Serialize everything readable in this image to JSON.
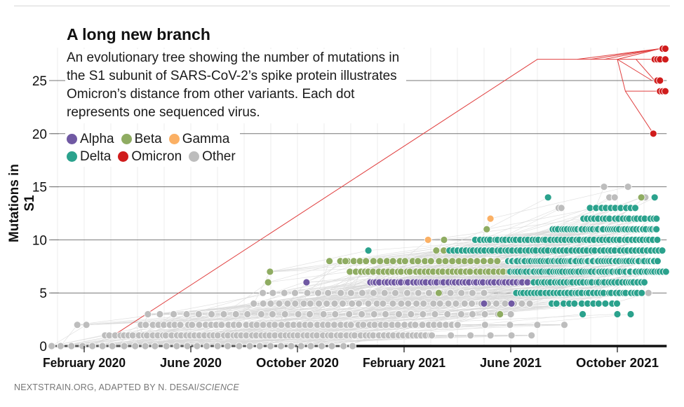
{
  "header": {
    "title": "A long new branch",
    "description": "An evolutionary tree showing the number of mutations in the S1 subunit of SARS-CoV-2’s spike protein illustrates Omicron’s distance from other variants. Each dot represents one sequenced virus."
  },
  "footer": {
    "credit": "NEXTSTRAIN.ORG, ADAPTED BY N. DESAI/",
    "publication": "SCIENCE"
  },
  "chart_data": {
    "type": "scatter",
    "title": "A long new branch",
    "xlabel": "",
    "ylabel": "Mutations in S1",
    "x_unit": "months since January 2020",
    "xlim": [
      -0.26,
      22.85
    ],
    "ylim": [
      0,
      28
    ],
    "yticks": [
      0,
      5,
      10,
      15,
      20,
      25
    ],
    "ygrid": [
      5,
      10,
      15,
      20,
      25
    ],
    "xticks": [
      {
        "value": 1,
        "label": "February 2020"
      },
      {
        "value": 5,
        "label": "June 2020"
      },
      {
        "value": 9,
        "label": "October 2020"
      },
      {
        "value": 13,
        "label": "February 2021"
      },
      {
        "value": 17,
        "label": "June 2021"
      },
      {
        "value": 21,
        "label": "October 2021"
      }
    ],
    "legend": {
      "placement": "top-left"
    },
    "series": [
      {
        "name": "Other",
        "color": "#bdbdbd",
        "runs": [
          [
            0,
            -0.26,
            11.1,
            30
          ],
          [
            1,
            1.8,
            14,
            70
          ],
          [
            1,
            14,
            17.8,
            6
          ],
          [
            2,
            0.75,
            1.1,
            2
          ],
          [
            2,
            3.1,
            15,
            55
          ],
          [
            2,
            15,
            19,
            5
          ],
          [
            3,
            3.4,
            17,
            30
          ],
          [
            4,
            7.4,
            17.7,
            35
          ],
          [
            5,
            8.1,
            16,
            20
          ],
          [
            5,
            20,
            22.2,
            4
          ]
        ],
        "points": [
          [
            20.5,
            15
          ],
          [
            21.4,
            15
          ],
          [
            20.7,
            14
          ],
          [
            20.9,
            14
          ],
          [
            21.9,
            14
          ],
          [
            22.05,
            14
          ],
          [
            18.8,
            13
          ],
          [
            18.9,
            13
          ],
          [
            21,
            13
          ],
          [
            21.4,
            12
          ],
          [
            16.55,
            10
          ],
          [
            7.7,
            5
          ]
        ]
      },
      {
        "name": "Alpha",
        "color": "#7059a3",
        "runs": [
          [
            6,
            11.7,
            17.6,
            45
          ]
        ],
        "points": [
          [
            9.34,
            6
          ],
          [
            16,
            4
          ],
          [
            17.03,
            4
          ]
        ]
      },
      {
        "name": "Beta",
        "color": "#8fac62",
        "runs": [
          [
            7,
            11,
            16.9,
            35
          ],
          [
            8,
            10.6,
            16.5,
            25
          ],
          [
            9,
            14.2,
            16.3,
            8
          ]
        ],
        "points": [
          [
            7.97,
            7
          ],
          [
            7.9,
            6
          ],
          [
            10.2,
            8
          ],
          [
            10.8,
            8
          ],
          [
            14.5,
            10
          ],
          [
            15.9,
            10
          ],
          [
            17.8,
            10
          ],
          [
            16.1,
            11
          ],
          [
            21.9,
            14
          ],
          [
            14.3,
            5
          ],
          [
            16.6,
            3
          ]
        ]
      },
      {
        "name": "Gamma",
        "color": "#fbb064",
        "runs": [],
        "points": [
          [
            16.24,
            12
          ],
          [
            13.9,
            10
          ],
          [
            17.05,
            10
          ],
          [
            18.1,
            10
          ],
          [
            19.1,
            11
          ]
        ]
      },
      {
        "name": "Delta",
        "color": "#2ba28d",
        "runs": [
          [
            7,
            17,
            22.8,
            60
          ],
          [
            8,
            16.9,
            22.5,
            60
          ],
          [
            9,
            14.7,
            22.7,
            55
          ],
          [
            10,
            15.7,
            22.5,
            50
          ],
          [
            11,
            18.6,
            22.5,
            40
          ],
          [
            12,
            19.7,
            22.5,
            20
          ],
          [
            13,
            20,
            21.7,
            10
          ],
          [
            6,
            17.9,
            22,
            35
          ],
          [
            5,
            17.2,
            21.9,
            35
          ],
          [
            4,
            18.5,
            21,
            12
          ]
        ],
        "points": [
          [
            11.66,
            9
          ],
          [
            18.4,
            14
          ],
          [
            22.4,
            14
          ],
          [
            19.7,
            3
          ],
          [
            21,
            3
          ],
          [
            21.5,
            3
          ]
        ]
      },
      {
        "name": "Omicron",
        "color": "#d01c1c",
        "runs": [],
        "points": [
          [
            22.7,
            28
          ],
          [
            22.8,
            28
          ],
          [
            22.4,
            27
          ],
          [
            22.5,
            27
          ],
          [
            22.6,
            27
          ],
          [
            22.8,
            27
          ],
          [
            22.5,
            25
          ],
          [
            22.6,
            25
          ],
          [
            22.6,
            24
          ],
          [
            22.7,
            24
          ],
          [
            22.8,
            24
          ],
          [
            22.35,
            20
          ]
        ]
      }
    ],
    "omicron_branches": [
      [
        [
          2.1,
          1
        ],
        [
          18,
          27
        ],
        [
          21,
          27
        ]
      ],
      [
        [
          19.5,
          27
        ],
        [
          22.6,
          28
        ]
      ],
      [
        [
          20,
          27
        ],
        [
          22.6,
          28
        ]
      ],
      [
        [
          20.5,
          27
        ],
        [
          22.6,
          28
        ]
      ],
      [
        [
          21,
          27
        ],
        [
          22.6,
          28
        ]
      ],
      [
        [
          21,
          27
        ],
        [
          22.8,
          27
        ]
      ],
      [
        [
          21,
          27
        ],
        [
          22.3,
          25
        ]
      ],
      [
        [
          21.7,
          27
        ],
        [
          22.4,
          25
        ]
      ],
      [
        [
          21,
          27
        ],
        [
          21.3,
          24
        ],
        [
          22.7,
          24
        ]
      ],
      [
        [
          21.3,
          24
        ],
        [
          22.35,
          20
        ]
      ]
    ]
  }
}
